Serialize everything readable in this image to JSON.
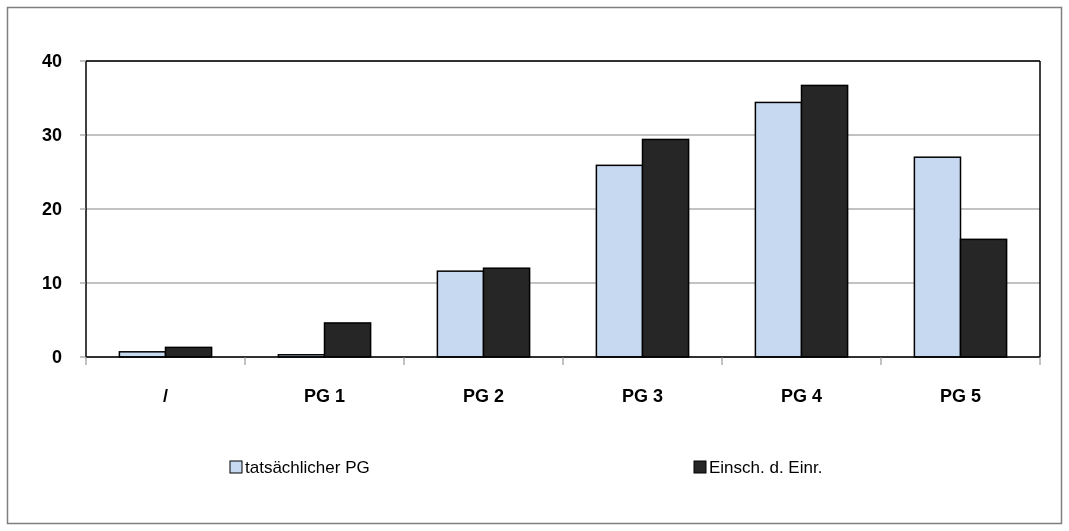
{
  "chart_data": {
    "type": "bar",
    "categories": [
      "/",
      "PG 1",
      "PG 2",
      "PG 3",
      "PG 4",
      "PG 5"
    ],
    "series": [
      {
        "name": "tatsächlicher PG",
        "color": "#c6d9f0",
        "values": [
          0.7,
          0.3,
          11.6,
          25.9,
          34.4,
          27.0
        ]
      },
      {
        "name": "Einsch. d. Einr.",
        "color": "#262626",
        "values": [
          1.3,
          4.6,
          12.0,
          29.4,
          36.7,
          15.9
        ]
      }
    ],
    "ylim": [
      0,
      40
    ],
    "yticks": [
      0,
      10,
      20,
      30,
      40
    ],
    "grid": "y",
    "legend": "bottom"
  }
}
